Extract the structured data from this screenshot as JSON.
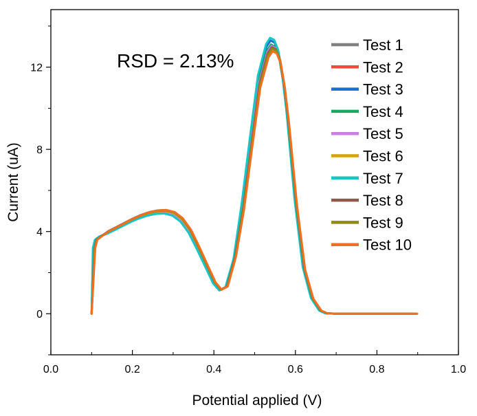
{
  "chart_data": {
    "type": "line",
    "title": "",
    "xlabel": "Potential applied (V)",
    "ylabel": "Current (uA)",
    "xlim": [
      0.0,
      1.0
    ],
    "ylim": [
      -2,
      14.8
    ],
    "x_ticks": [
      0.0,
      0.2,
      0.4,
      0.6,
      0.8,
      1.0
    ],
    "x_tick_labels": [
      "0.0",
      "0.2",
      "0.4",
      "0.6",
      "0.8",
      "1.0"
    ],
    "y_ticks": [
      0,
      4,
      8,
      12
    ],
    "y_tick_labels": [
      "0",
      "4",
      "8",
      "12"
    ],
    "annotation": "RSD = 2.13%",
    "legend_position": "top-right",
    "base_curve": {
      "x": [
        0.1,
        0.105,
        0.11,
        0.12,
        0.14,
        0.16,
        0.18,
        0.2,
        0.22,
        0.24,
        0.26,
        0.28,
        0.3,
        0.32,
        0.34,
        0.36,
        0.38,
        0.4,
        0.415,
        0.43,
        0.45,
        0.47,
        0.49,
        0.51,
        0.53,
        0.54,
        0.55,
        0.56,
        0.57,
        0.58,
        0.6,
        0.62,
        0.64,
        0.66,
        0.675,
        0.7,
        0.75,
        0.8,
        0.85,
        0.895
      ],
      "y": [
        0.0,
        3.2,
        3.6,
        3.75,
        3.95,
        4.15,
        4.35,
        4.55,
        4.72,
        4.85,
        4.93,
        4.95,
        4.85,
        4.55,
        4.0,
        3.2,
        2.35,
        1.5,
        1.15,
        1.3,
        2.7,
        5.2,
        8.3,
        11.3,
        12.8,
        13.1,
        13.0,
        12.5,
        11.3,
        9.6,
        5.4,
        2.2,
        0.75,
        0.15,
        0.02,
        0.0,
        0.0,
        0.0,
        0.0,
        0.0
      ]
    },
    "series": [
      {
        "name": "Test 1",
        "color": "#808080",
        "peak_scale": 1.0,
        "x_shift": 0.0,
        "hump_scale": 1.0
      },
      {
        "name": "Test 2",
        "color": "#ee4b3b",
        "peak_scale": 0.99,
        "x_shift": 0.001,
        "hump_scale": 1.01
      },
      {
        "name": "Test 3",
        "color": "#1a6fd1",
        "peak_scale": 1.015,
        "x_shift": -0.001,
        "hump_scale": 0.99
      },
      {
        "name": "Test 4",
        "color": "#17a862",
        "peak_scale": 1.0,
        "x_shift": 0.0,
        "hump_scale": 1.0
      },
      {
        "name": "Test 5",
        "color": "#c87fe0",
        "peak_scale": 0.995,
        "x_shift": 0.001,
        "hump_scale": 1.0
      },
      {
        "name": "Test 6",
        "color": "#d9a012",
        "peak_scale": 0.985,
        "x_shift": 0.002,
        "hump_scale": 1.01
      },
      {
        "name": "Test 7",
        "color": "#14c6c6",
        "peak_scale": 1.025,
        "x_shift": -0.002,
        "hump_scale": 0.985
      },
      {
        "name": "Test 8",
        "color": "#8b5a4a",
        "peak_scale": 0.99,
        "x_shift": 0.002,
        "hump_scale": 1.02
      },
      {
        "name": "Test 9",
        "color": "#8f8a1a",
        "peak_scale": 0.985,
        "x_shift": 0.003,
        "hump_scale": 1.015
      },
      {
        "name": "Test 10",
        "color": "#f07020",
        "peak_scale": 0.975,
        "x_shift": 0.004,
        "hump_scale": 1.02
      }
    ]
  }
}
